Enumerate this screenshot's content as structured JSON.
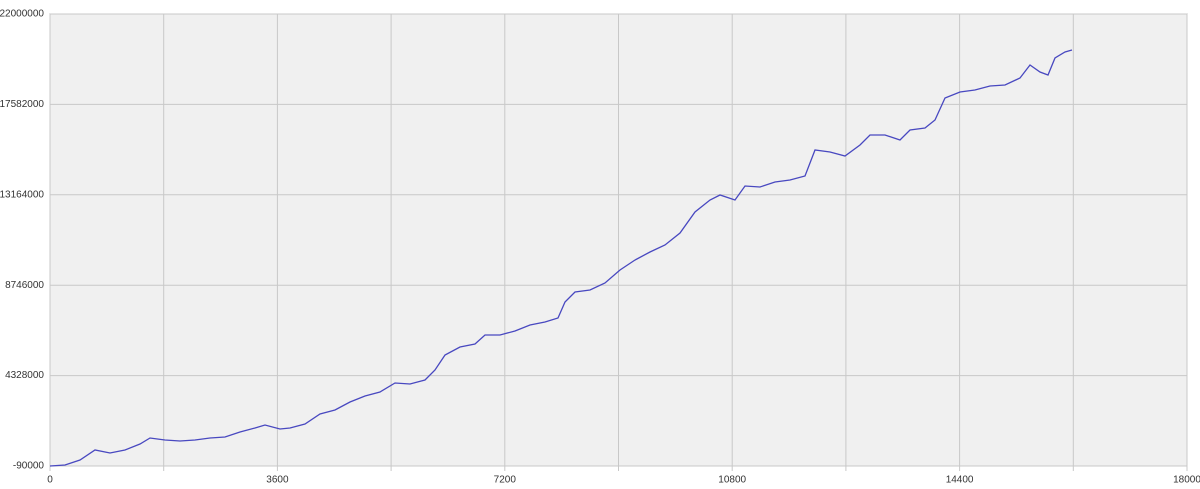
{
  "chart_data": {
    "type": "line",
    "x": [
      0,
      237,
      475,
      712,
      950,
      1187,
      1425,
      1583,
      1821,
      2058,
      2295,
      2533,
      2770,
      3008,
      3245,
      3404,
      3641,
      3799,
      4037,
      4274,
      4512,
      4749,
      4987,
      5224,
      5462,
      5699,
      5937,
      6095,
      6253,
      6491,
      6728,
      6887,
      7124,
      7361,
      7599,
      7836,
      8042,
      8153,
      8311,
      8549,
      8786,
      9024,
      9261,
      9499,
      9736,
      9974,
      10211,
      10448,
      10607,
      10844,
      11003,
      11240,
      11478,
      11715,
      11952,
      12111,
      12348,
      12586,
      12823,
      12981,
      13219,
      13456,
      13615,
      13852,
      14010,
      14169,
      14406,
      14643,
      14881,
      15118,
      15356,
      15514,
      15673,
      15799,
      15910,
      16068,
      16179
    ],
    "series": [
      {
        "color": "#4848c0",
        "values": [
          -90000,
          -41000,
          203000,
          692000,
          545000,
          692000,
          985000,
          1278000,
          1181000,
          1132000,
          1181000,
          1278000,
          1327000,
          1572000,
          1767000,
          1914000,
          1718000,
          1767000,
          1963000,
          2451000,
          2647000,
          3038000,
          3331000,
          3527000,
          3966000,
          3918000,
          4113000,
          4602000,
          5335000,
          5726000,
          5872000,
          6312000,
          6312000,
          6508000,
          6801000,
          6948000,
          7143000,
          7925000,
          8414000,
          8511000,
          8854000,
          9489000,
          9978000,
          10369000,
          10711000,
          11297000,
          12323000,
          12910000,
          13154000,
          12910000,
          13594000,
          13545000,
          13790000,
          13887000,
          14083000,
          15354000,
          15256000,
          15060000,
          15598000,
          16087000,
          16087000,
          15842000,
          16331000,
          16429000,
          16820000,
          17895000,
          18188000,
          18286000,
          18481000,
          18530000,
          18872000,
          19508000,
          19166000,
          19019000,
          19850000,
          20143000,
          20241000
        ]
      }
    ],
    "xlim": [
      0,
      18000
    ],
    "xticks": [
      0,
      3600,
      7200,
      10800,
      14400,
      18000
    ],
    "ylim": [
      -90000,
      22000000
    ],
    "yticks": [
      -90000,
      4328000,
      8746000,
      13164000,
      17582000,
      22000000
    ],
    "grid": true
  }
}
